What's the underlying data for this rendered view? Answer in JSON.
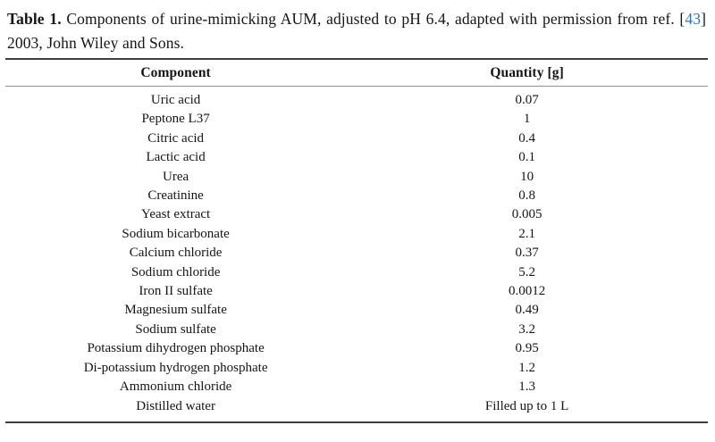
{
  "caption": {
    "label": "Table 1.",
    "body_start": " Components of urine-mimicking AUM, adjusted to pH 6.4, adapted with permission from ref. [",
    "ref_number": "43",
    "body_end": "] 2003, John Wiley and Sons."
  },
  "table": {
    "columns": [
      "Component",
      "Quantity [g]"
    ],
    "rows": [
      {
        "component": "Uric acid",
        "quantity": "0.07"
      },
      {
        "component": "Peptone L37",
        "quantity": "1"
      },
      {
        "component": "Citric acid",
        "quantity": "0.4"
      },
      {
        "component": "Lactic acid",
        "quantity": "0.1"
      },
      {
        "component": "Urea",
        "quantity": "10"
      },
      {
        "component": "Creatinine",
        "quantity": "0.8"
      },
      {
        "component": "Yeast extract",
        "quantity": "0.005"
      },
      {
        "component": "Sodium bicarbonate",
        "quantity": "2.1"
      },
      {
        "component": "Calcium chloride",
        "quantity": "0.37"
      },
      {
        "component": "Sodium chloride",
        "quantity": "5.2"
      },
      {
        "component": "Iron II sulfate",
        "quantity": "0.0012"
      },
      {
        "component": "Magnesium sulfate",
        "quantity": "0.49"
      },
      {
        "component": "Sodium sulfate",
        "quantity": "3.2"
      },
      {
        "component": "Potassium dihydrogen phosphate",
        "quantity": "0.95"
      },
      {
        "component": "Di-potassium hydrogen phosphate",
        "quantity": "1.2"
      },
      {
        "component": "Ammonium chloride",
        "quantity": "1.3"
      },
      {
        "component": "Distilled water",
        "quantity": "Filled up to 1 L"
      }
    ]
  },
  "colors": {
    "reference_link": "#2d78b4",
    "rule_dark": "#3f3f3f",
    "rule_light": "#929292",
    "text": "#151515"
  }
}
